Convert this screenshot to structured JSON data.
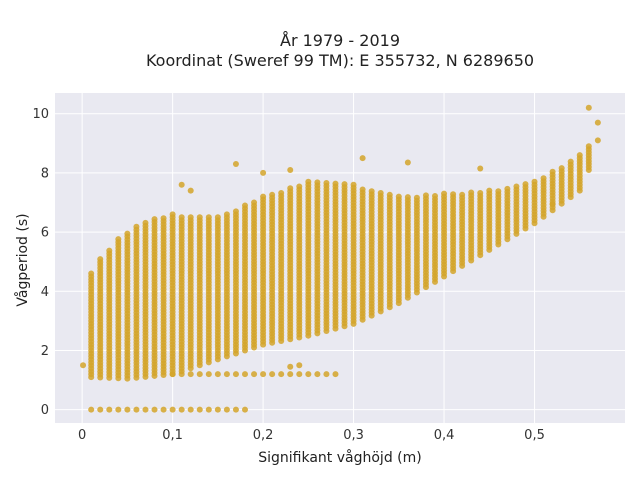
{
  "chart_data": {
    "type": "scatter",
    "title_lines": [
      "År 1979 - 2019",
      "Koordinat (Sweref 99 TM): E 355732, N 6289650"
    ],
    "xlabel": "Signifikant våghöjd (m)",
    "ylabel": "Vågperiod (s)",
    "xlim": [
      -0.03,
      0.6
    ],
    "ylim": [
      -0.45,
      10.7
    ],
    "x_ticks": [
      0,
      0.1,
      0.2,
      0.3,
      0.4,
      0.5
    ],
    "x_tick_labels": [
      "0",
      "0,1",
      "0,2",
      "0,3",
      "0,4",
      "0,5"
    ],
    "y_ticks": [
      0,
      2,
      4,
      6,
      8,
      10
    ],
    "y_tick_labels": [
      "0",
      "2",
      "4",
      "6",
      "8",
      "10"
    ],
    "grid": true,
    "background": "#e9e9f1",
    "marker_color": "#d4a52a",
    "band_x_step": 0.01,
    "band_x_range": [
      0.01,
      0.56
    ],
    "band_lower_y": [
      {
        "x": 0.01,
        "y": 1.1
      },
      {
        "x": 0.05,
        "y": 1.05
      },
      {
        "x": 0.1,
        "y": 1.2
      },
      {
        "x": 0.13,
        "y": 1.5
      },
      {
        "x": 0.16,
        "y": 1.8
      },
      {
        "x": 0.2,
        "y": 2.2
      },
      {
        "x": 0.25,
        "y": 2.5
      },
      {
        "x": 0.3,
        "y": 2.9
      },
      {
        "x": 0.35,
        "y": 3.6
      },
      {
        "x": 0.4,
        "y": 4.5
      },
      {
        "x": 0.45,
        "y": 5.4
      },
      {
        "x": 0.5,
        "y": 6.3
      },
      {
        "x": 0.55,
        "y": 7.4
      },
      {
        "x": 0.57,
        "y": 8.8
      }
    ],
    "band_upper_y": [
      {
        "x": 0.01,
        "y": 4.6
      },
      {
        "x": 0.02,
        "y": 5.1
      },
      {
        "x": 0.04,
        "y": 5.8
      },
      {
        "x": 0.07,
        "y": 6.4
      },
      {
        "x": 0.1,
        "y": 6.6
      },
      {
        "x": 0.15,
        "y": 6.5
      },
      {
        "x": 0.2,
        "y": 7.2
      },
      {
        "x": 0.25,
        "y": 7.7
      },
      {
        "x": 0.3,
        "y": 7.6
      },
      {
        "x": 0.35,
        "y": 7.2
      },
      {
        "x": 0.4,
        "y": 7.3
      },
      {
        "x": 0.45,
        "y": 7.4
      },
      {
        "x": 0.5,
        "y": 7.7
      },
      {
        "x": 0.55,
        "y": 8.6
      },
      {
        "x": 0.57,
        "y": 9.3
      }
    ],
    "zero_row": {
      "y": 0,
      "x_from": 0.01,
      "x_to": 0.18,
      "x_step": 0.01
    },
    "low_row": {
      "y": 1.2,
      "x_from": 0.1,
      "x_to": 0.28,
      "x_step": 0.01
    },
    "outliers": [
      {
        "x": 0.001,
        "y": 1.5
      },
      {
        "x": 0.11,
        "y": 7.6
      },
      {
        "x": 0.12,
        "y": 7.4
      },
      {
        "x": 0.17,
        "y": 8.3
      },
      {
        "x": 0.2,
        "y": 8.0
      },
      {
        "x": 0.23,
        "y": 8.1
      },
      {
        "x": 0.31,
        "y": 8.5
      },
      {
        "x": 0.36,
        "y": 8.35
      },
      {
        "x": 0.44,
        "y": 8.15
      },
      {
        "x": 0.23,
        "y": 1.45
      },
      {
        "x": 0.24,
        "y": 1.5
      },
      {
        "x": 0.56,
        "y": 10.2
      },
      {
        "x": 0.57,
        "y": 9.7
      },
      {
        "x": 0.57,
        "y": 9.1
      },
      {
        "x": 0.52,
        "y": 6.95
      }
    ]
  }
}
